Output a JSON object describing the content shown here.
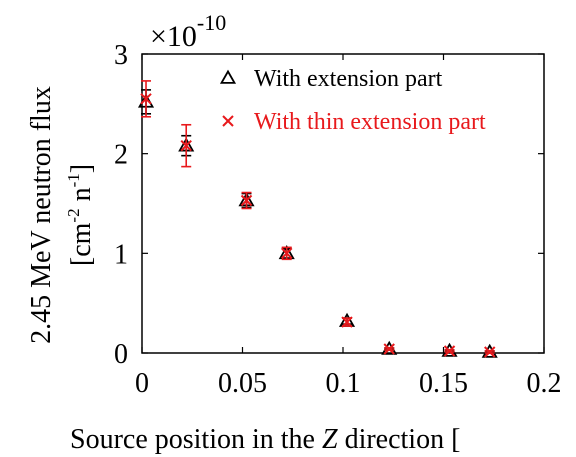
{
  "chart_data": {
    "type": "scatter",
    "title": "",
    "xlabel": "Source position in the Z direction [",
    "xlabel_parts": {
      "before": "Source position in the ",
      "italic": "Z",
      "after": " direction ["
    },
    "ylabel_line1": "2.45 MeV neutron flux",
    "ylabel_line2": {
      "open": "[cm",
      "sup1": "-2",
      "mid": " n",
      "sup2": "-1",
      "close": "]"
    },
    "scale_factor": {
      "prefix": "×10",
      "exponent": "-10"
    },
    "xlim": [
      0,
      0.2
    ],
    "ylim": [
      0,
      3
    ],
    "x_ticks": [
      {
        "value": 0,
        "label": "0"
      },
      {
        "value": 0.05,
        "label": "0.05"
      },
      {
        "value": 0.1,
        "label": "0.1"
      },
      {
        "value": 0.15,
        "label": "0.15"
      },
      {
        "value": 0.2,
        "label": "0.2"
      }
    ],
    "y_ticks": [
      {
        "value": 0,
        "label": "0"
      },
      {
        "value": 1,
        "label": "1"
      },
      {
        "value": 2,
        "label": "2"
      },
      {
        "value": 3,
        "label": "3"
      }
    ],
    "grid": false,
    "legend_position": "top-right",
    "series": [
      {
        "name": "With extension part",
        "marker": "triangle",
        "color": "#000000",
        "x": [
          0.002,
          0.022,
          0.052,
          0.072,
          0.102,
          0.123,
          0.153,
          0.173
        ],
        "y": [
          2.52,
          2.08,
          1.53,
          1.0,
          0.32,
          0.04,
          0.02,
          0.01
        ],
        "err": [
          0.12,
          0.1,
          0.07,
          0.05,
          0.03,
          0.01,
          0.01,
          0.01
        ]
      },
      {
        "name": "With thin extension part",
        "marker": "x",
        "color": "#e8191c",
        "x": [
          0.002,
          0.022,
          0.052,
          0.072,
          0.102,
          0.123,
          0.153,
          0.173
        ],
        "y": [
          2.55,
          2.08,
          1.53,
          1.0,
          0.31,
          0.04,
          0.02,
          0.01
        ],
        "err": [
          0.18,
          0.21,
          0.08,
          0.06,
          0.04,
          0.01,
          0.01,
          0.01
        ]
      }
    ]
  }
}
